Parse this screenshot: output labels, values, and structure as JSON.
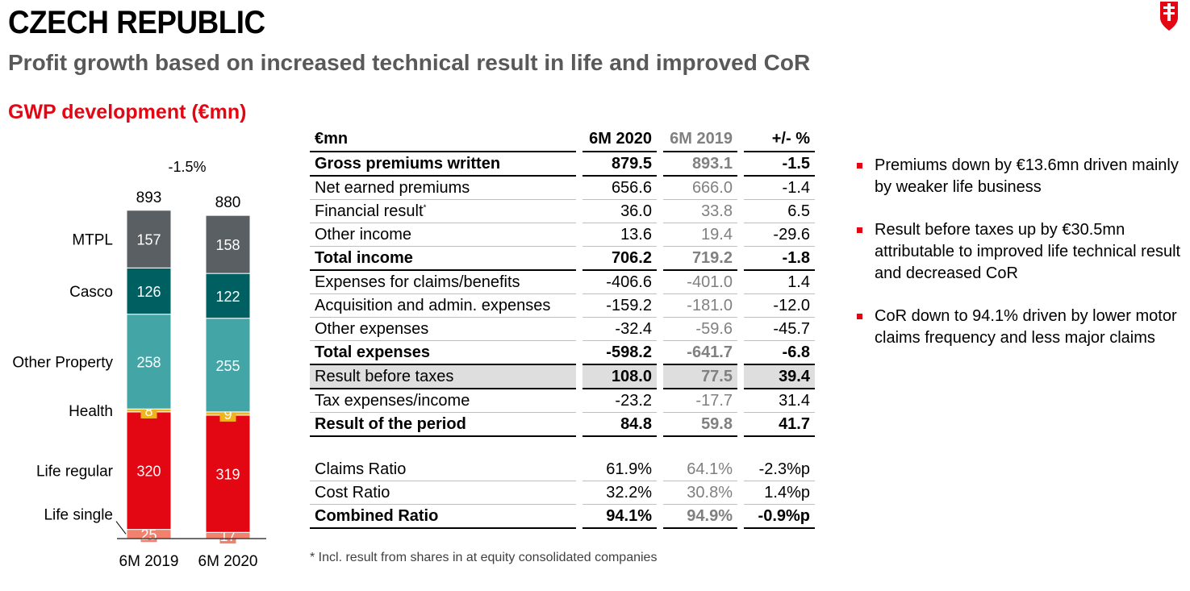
{
  "header": {
    "title": "CZECH REPUBLIC",
    "subtitle": "Profit growth based on increased technical result in life and improved CoR",
    "section_title": "GWP development (€mn)"
  },
  "logo": {
    "icon": "brand-logo-icon",
    "color": "#e30613"
  },
  "colors": {
    "accent": "#e30613",
    "MTPL": "#595f63",
    "Casco": "#005f61",
    "Other Property": "#44a5a7",
    "Health": "#f0b41c",
    "Life regular": "#e30613",
    "Life single": "#f2826e"
  },
  "chart_data": {
    "type": "bar",
    "stacked": true,
    "categories": [
      "6M 2019",
      "6M 2020"
    ],
    "series": [
      {
        "name": "Life single",
        "values": [
          25,
          17
        ]
      },
      {
        "name": "Life regular",
        "values": [
          320,
          319
        ]
      },
      {
        "name": "Health",
        "values": [
          8,
          9
        ]
      },
      {
        "name": "Other Property",
        "values": [
          258,
          255
        ]
      },
      {
        "name": "Casco",
        "values": [
          126,
          122
        ]
      },
      {
        "name": "MTPL",
        "values": [
          157,
          158
        ]
      }
    ],
    "totals": [
      893,
      880
    ],
    "change_label": "-1.5%"
  },
  "table": {
    "headers": [
      "€mn",
      "6M 2020",
      "6M 2019",
      "+/- %"
    ],
    "rows": [
      {
        "label": "Gross premiums written",
        "v2020": "879.5",
        "v2019": "893.1",
        "delta": "-1.5",
        "style": "bold"
      },
      {
        "label": "Net earned premiums",
        "v2020": "656.6",
        "v2019": "666.0",
        "delta": "-1.4",
        "style": "normal"
      },
      {
        "label": "Financial result",
        "note": "*",
        "v2020": "36.0",
        "v2019": "33.8",
        "delta": "6.5",
        "style": "normal"
      },
      {
        "label": "Other income",
        "v2020": "13.6",
        "v2019": "19.4",
        "delta": "-29.6",
        "style": "normal"
      },
      {
        "label": "Total income",
        "v2020": "706.2",
        "v2019": "719.2",
        "delta": "-1.8",
        "style": "bold"
      },
      {
        "label": "Expenses for claims/benefits",
        "v2020": "-406.6",
        "v2019": "-401.0",
        "delta": "1.4",
        "style": "normal"
      },
      {
        "label": "Acquisition and admin. expenses",
        "v2020": "-159.2",
        "v2019": "-181.0",
        "delta": "-12.0",
        "style": "normal"
      },
      {
        "label": "Other expenses",
        "v2020": "-32.4",
        "v2019": "-59.6",
        "delta": "-45.7",
        "style": "normal"
      },
      {
        "label": "Total expenses",
        "v2020": "-598.2",
        "v2019": "-641.7",
        "delta": "-6.8",
        "style": "bold"
      },
      {
        "label": "Result before taxes",
        "v2020": "108.0",
        "v2019": "77.5",
        "delta": "39.4",
        "style": "highlight"
      },
      {
        "label": "Tax expenses/income",
        "v2020": "-23.2",
        "v2019": "-17.7",
        "delta": "31.4",
        "style": "normal"
      },
      {
        "label": "Result of the period",
        "v2020": "84.8",
        "v2019": "59.8",
        "delta": "41.7",
        "style": "bold"
      },
      {
        "style": "spacer"
      },
      {
        "label": "Claims Ratio",
        "v2020": "61.9%",
        "v2019": "64.1%",
        "delta": "-2.3%p",
        "style": "normal"
      },
      {
        "label": "Cost Ratio",
        "v2020": "32.2%",
        "v2019": "30.8%",
        "delta": "1.4%p",
        "style": "normal"
      },
      {
        "label": "Combined Ratio",
        "v2020": "94.1%",
        "v2019": "94.9%",
        "delta": "-0.9%p",
        "style": "bold"
      }
    ],
    "footnote": "* Incl. result from shares in at equity consolidated companies"
  },
  "bullets": [
    "Premiums down by €13.6mn driven mainly by weaker life business",
    "Result before taxes up by €30.5mn attributable to improved life technical result and decreased CoR",
    "CoR down to 94.1% driven by lower motor claims frequency and less major claims"
  ]
}
